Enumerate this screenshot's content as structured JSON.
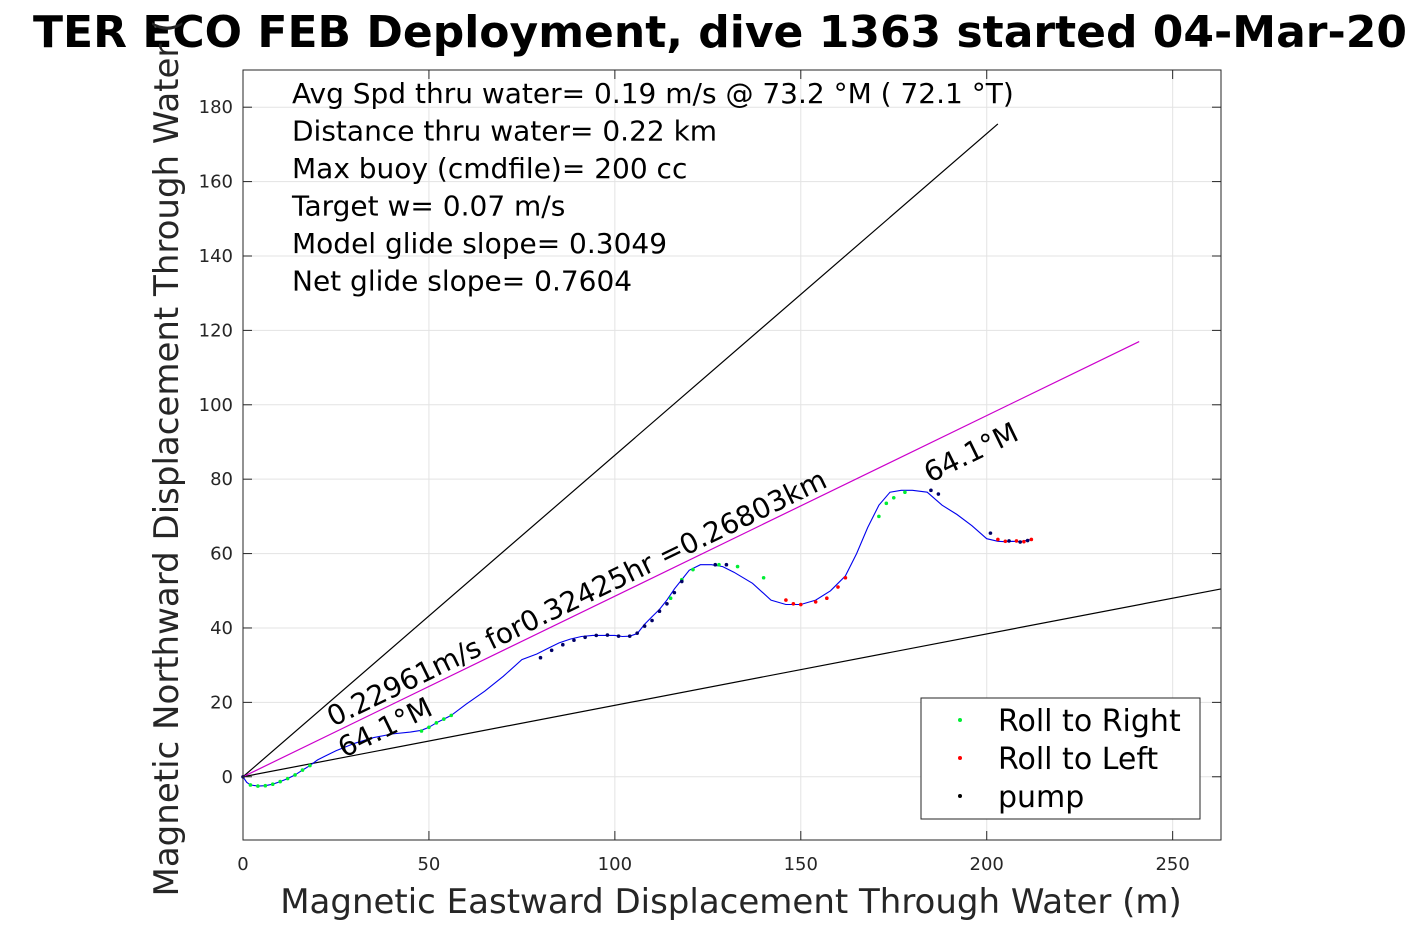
{
  "chart_data": {
    "type": "line",
    "title": "TER ECO FEB Deployment, dive 1363 started 04-Mar-20",
    "xlabel": "Magnetic Eastward Displacement Through Water (m)",
    "ylabel": "Magnetic Northward Displacement Through Water (",
    "xlim": [
      0,
      263
    ],
    "ylim": [
      -17,
      190
    ],
    "xticks": [
      0,
      50,
      100,
      150,
      200,
      250
    ],
    "yticks": [
      0,
      20,
      40,
      60,
      80,
      100,
      120,
      140,
      160,
      180
    ],
    "grid": true,
    "info_lines": [
      "Avg Spd thru water=  0.19 m/s @  73.2 °M ( 72.1 °T)",
      "Distance thru water=  0.22 km",
      "Max buoy (cmdfile)= 200 cc",
      "Target w= 0.07 m/s",
      "Model glide slope= 0.3049",
      "Net glide slope= 0.7604"
    ],
    "annotations": {
      "speed_text": "0.22961m/s for0.32425hr =0.26803km",
      "heading_start": "64.1°M",
      "heading_end": "64.1°M"
    },
    "legend": {
      "location": "bottom-right",
      "entries": [
        {
          "label": "Roll to Right",
          "color": "#00ee33"
        },
        {
          "label": "Roll to Left",
          "color": "#ff0000"
        },
        {
          "label": "pump",
          "color": "#000000"
        }
      ]
    },
    "reference_lines": [
      {
        "color": "#000000",
        "x": [
          0,
          203
        ],
        "y": [
          0,
          175.5
        ]
      },
      {
        "color": "#000000",
        "x": [
          0,
          263
        ],
        "y": [
          0,
          50.5
        ]
      },
      {
        "color": "#cc00cc",
        "x": [
          0,
          241
        ],
        "y": [
          0,
          117
        ]
      }
    ],
    "track": {
      "color": "#0000ee",
      "x": [
        0,
        1,
        2,
        4,
        6,
        8,
        10,
        12,
        14,
        16,
        18,
        20,
        22,
        25,
        30,
        35,
        40,
        45,
        48,
        50,
        52,
        54,
        56,
        60,
        65,
        70,
        75,
        79,
        82,
        85,
        88,
        91,
        94,
        97,
        100,
        102,
        104,
        106,
        108,
        110,
        112,
        114,
        116,
        118,
        120,
        123,
        126,
        129,
        132,
        137,
        142,
        146,
        150,
        154,
        158,
        162,
        165,
        168,
        171,
        174,
        177,
        180,
        184,
        188,
        192,
        196,
        200,
        203,
        205,
        207,
        209,
        212
      ],
      "y": [
        0,
        -1.5,
        -2.2,
        -2.5,
        -2.4,
        -2,
        -1.3,
        -0.5,
        0.5,
        1.8,
        3,
        4.5,
        5.5,
        7,
        9,
        10.5,
        11.5,
        12,
        12.5,
        13.3,
        14.5,
        15.5,
        16.5,
        19.5,
        23,
        27,
        31.5,
        33,
        34.5,
        36,
        37,
        37.7,
        38,
        38,
        38,
        37.7,
        37.8,
        38.5,
        41,
        43,
        45,
        47.5,
        50.5,
        53,
        55.5,
        57,
        57,
        56.5,
        55,
        52,
        47.5,
        46.3,
        46.3,
        47.5,
        50,
        54,
        60,
        67,
        73,
        76.5,
        77,
        77,
        76.5,
        73,
        70.5,
        67.5,
        64,
        63.3,
        63.2,
        63.3,
        63.2,
        63.8
      ]
    },
    "markers": {
      "right": [
        [
          2,
          -2.2
        ],
        [
          4,
          -2.5
        ],
        [
          6,
          -2.4
        ],
        [
          8,
          -2
        ],
        [
          10,
          -1.3
        ],
        [
          12,
          -0.5
        ],
        [
          14,
          0.5
        ],
        [
          16,
          1.8
        ],
        [
          18,
          3
        ],
        [
          48,
          12.3
        ],
        [
          50,
          13.3
        ],
        [
          52,
          14.5
        ],
        [
          54,
          15.5
        ],
        [
          56,
          16.5
        ],
        [
          115,
          48
        ],
        [
          118,
          53
        ],
        [
          121,
          55.7
        ],
        [
          128,
          57
        ],
        [
          133,
          56.5
        ],
        [
          140,
          53.5
        ],
        [
          171,
          70
        ],
        [
          173,
          73.5
        ],
        [
          175,
          75
        ],
        [
          178,
          76.5
        ]
      ],
      "left": [
        [
          146,
          47.5
        ],
        [
          148,
          46.5
        ],
        [
          150,
          46.3
        ],
        [
          154,
          47
        ],
        [
          157,
          48
        ],
        [
          160,
          51
        ],
        [
          162,
          53.5
        ],
        [
          203,
          63.8
        ],
        [
          205,
          63.3
        ],
        [
          208,
          63.4
        ],
        [
          210,
          63.2
        ],
        [
          212,
          63.8
        ]
      ],
      "pump": [
        [
          0,
          0
        ],
        [
          80,
          32
        ],
        [
          83,
          34
        ],
        [
          86,
          35.5
        ],
        [
          89,
          36.7
        ],
        [
          92,
          37.5
        ],
        [
          95,
          38
        ],
        [
          98,
          38.1
        ],
        [
          101,
          37.8
        ],
        [
          104,
          37.8
        ],
        [
          106,
          38.6
        ],
        [
          108,
          40.5
        ],
        [
          110,
          42
        ],
        [
          112,
          44.5
        ],
        [
          114,
          46.5
        ],
        [
          116,
          49.5
        ],
        [
          118,
          52.5
        ],
        [
          127,
          57
        ],
        [
          130,
          57
        ],
        [
          185,
          77
        ],
        [
          187,
          76
        ],
        [
          201,
          65.5
        ],
        [
          206,
          63.4
        ],
        [
          209,
          63.1
        ],
        [
          211,
          63.5
        ]
      ]
    }
  }
}
